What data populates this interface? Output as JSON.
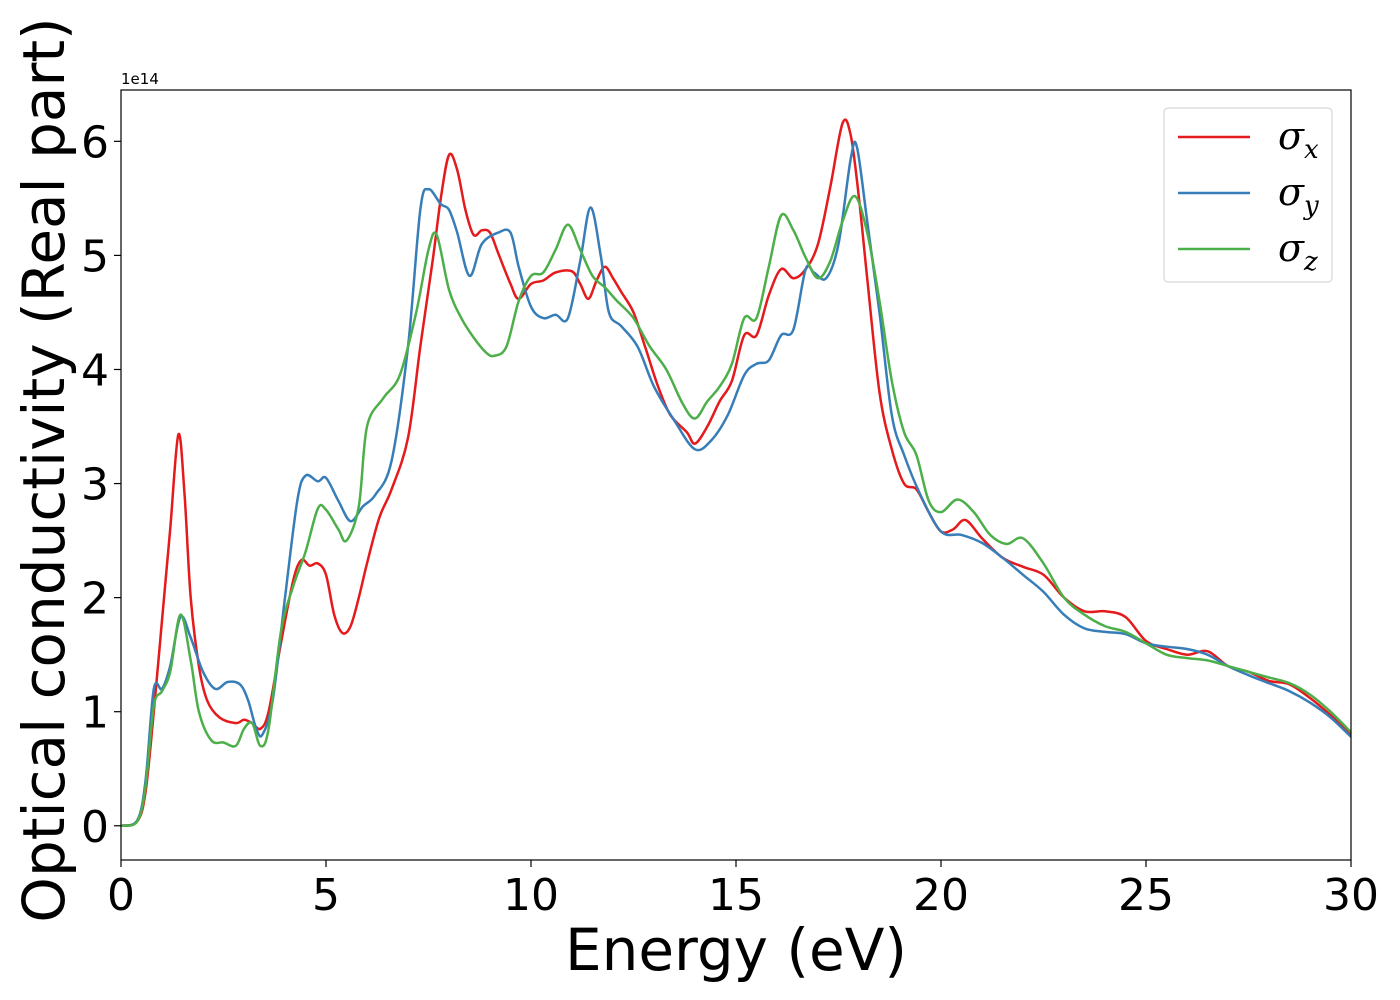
{
  "chart_data": {
    "type": "line",
    "title": "",
    "xlabel": "Energy (eV)",
    "ylabel": "Optical conductivity (Real part)",
    "y_multiplier_label": "1e14",
    "xlim": [
      0,
      30
    ],
    "ylim": [
      -0.3,
      6.45
    ],
    "x_ticks": [
      0,
      5,
      10,
      15,
      20,
      25,
      30
    ],
    "y_ticks": [
      0,
      1,
      2,
      3,
      4,
      5,
      6
    ],
    "grid": false,
    "legend_position": "top-right",
    "series": [
      {
        "name": "σx",
        "name_base": "σ",
        "name_sub": "x",
        "color": "#e41a1c",
        "points": [
          [
            0,
            0
          ],
          [
            0.4,
            0.04
          ],
          [
            0.6,
            0.3
          ],
          [
            0.8,
            1.0
          ],
          [
            1.0,
            1.8
          ],
          [
            1.2,
            2.6
          ],
          [
            1.4,
            3.43
          ],
          [
            1.55,
            2.9
          ],
          [
            1.7,
            2.0
          ],
          [
            1.9,
            1.4
          ],
          [
            2.1,
            1.1
          ],
          [
            2.4,
            0.95
          ],
          [
            2.8,
            0.9
          ],
          [
            3.0,
            0.93
          ],
          [
            3.2,
            0.9
          ],
          [
            3.4,
            0.85
          ],
          [
            3.6,
            1.0
          ],
          [
            3.9,
            1.6
          ],
          [
            4.2,
            2.15
          ],
          [
            4.4,
            2.33
          ],
          [
            4.6,
            2.28
          ],
          [
            4.8,
            2.3
          ],
          [
            5.0,
            2.2
          ],
          [
            5.2,
            1.85
          ],
          [
            5.4,
            1.69
          ],
          [
            5.6,
            1.75
          ],
          [
            5.8,
            2.0
          ],
          [
            6.0,
            2.3
          ],
          [
            6.3,
            2.7
          ],
          [
            6.6,
            2.95
          ],
          [
            7.0,
            3.4
          ],
          [
            7.3,
            4.2
          ],
          [
            7.6,
            4.95
          ],
          [
            7.8,
            5.5
          ],
          [
            8.0,
            5.88
          ],
          [
            8.2,
            5.75
          ],
          [
            8.4,
            5.4
          ],
          [
            8.6,
            5.18
          ],
          [
            8.8,
            5.22
          ],
          [
            9.0,
            5.2
          ],
          [
            9.2,
            5.02
          ],
          [
            9.5,
            4.75
          ],
          [
            9.7,
            4.62
          ],
          [
            10.0,
            4.75
          ],
          [
            10.3,
            4.78
          ],
          [
            10.6,
            4.85
          ],
          [
            11.0,
            4.86
          ],
          [
            11.2,
            4.75
          ],
          [
            11.4,
            4.62
          ],
          [
            11.6,
            4.78
          ],
          [
            11.8,
            4.9
          ],
          [
            12.0,
            4.8
          ],
          [
            12.2,
            4.68
          ],
          [
            12.5,
            4.5
          ],
          [
            12.8,
            4.18
          ],
          [
            13.1,
            3.85
          ],
          [
            13.4,
            3.6
          ],
          [
            13.8,
            3.45
          ],
          [
            14.0,
            3.35
          ],
          [
            14.3,
            3.5
          ],
          [
            14.6,
            3.72
          ],
          [
            14.9,
            3.9
          ],
          [
            15.2,
            4.3
          ],
          [
            15.5,
            4.3
          ],
          [
            15.8,
            4.65
          ],
          [
            16.1,
            4.88
          ],
          [
            16.4,
            4.8
          ],
          [
            16.7,
            4.88
          ],
          [
            17.0,
            5.1
          ],
          [
            17.3,
            5.6
          ],
          [
            17.6,
            6.16
          ],
          [
            17.8,
            6.05
          ],
          [
            18.0,
            5.5
          ],
          [
            18.2,
            4.8
          ],
          [
            18.5,
            3.8
          ],
          [
            18.8,
            3.3
          ],
          [
            19.1,
            3.0
          ],
          [
            19.4,
            2.95
          ],
          [
            19.7,
            2.75
          ],
          [
            20.0,
            2.58
          ],
          [
            20.3,
            2.6
          ],
          [
            20.6,
            2.68
          ],
          [
            21.0,
            2.52
          ],
          [
            21.5,
            2.35
          ],
          [
            22.0,
            2.27
          ],
          [
            22.5,
            2.2
          ],
          [
            23.0,
            2.0
          ],
          [
            23.5,
            1.88
          ],
          [
            24.0,
            1.88
          ],
          [
            24.5,
            1.83
          ],
          [
            25.0,
            1.62
          ],
          [
            25.5,
            1.55
          ],
          [
            26.0,
            1.5
          ],
          [
            26.5,
            1.53
          ],
          [
            27.0,
            1.4
          ],
          [
            27.5,
            1.35
          ],
          [
            28.0,
            1.27
          ],
          [
            28.5,
            1.24
          ],
          [
            29.0,
            1.12
          ],
          [
            29.5,
            0.97
          ],
          [
            30.0,
            0.8
          ]
        ]
      },
      {
        "name": "σy",
        "name_base": "σ",
        "name_sub": "y",
        "color": "#377eb8",
        "points": [
          [
            0,
            0
          ],
          [
            0.4,
            0.05
          ],
          [
            0.6,
            0.4
          ],
          [
            0.8,
            1.2
          ],
          [
            1.0,
            1.2
          ],
          [
            1.2,
            1.4
          ],
          [
            1.45,
            1.83
          ],
          [
            1.7,
            1.65
          ],
          [
            2.0,
            1.35
          ],
          [
            2.3,
            1.2
          ],
          [
            2.6,
            1.26
          ],
          [
            2.9,
            1.24
          ],
          [
            3.1,
            1.1
          ],
          [
            3.3,
            0.85
          ],
          [
            3.45,
            0.8
          ],
          [
            3.7,
            1.1
          ],
          [
            4.0,
            2.0
          ],
          [
            4.3,
            2.85
          ],
          [
            4.5,
            3.07
          ],
          [
            4.8,
            3.02
          ],
          [
            5.0,
            3.05
          ],
          [
            5.3,
            2.85
          ],
          [
            5.6,
            2.67
          ],
          [
            5.9,
            2.8
          ],
          [
            6.2,
            2.9
          ],
          [
            6.6,
            3.2
          ],
          [
            7.0,
            4.2
          ],
          [
            7.3,
            5.4
          ],
          [
            7.5,
            5.58
          ],
          [
            7.8,
            5.45
          ],
          [
            8.0,
            5.4
          ],
          [
            8.2,
            5.2
          ],
          [
            8.5,
            4.82
          ],
          [
            8.8,
            5.1
          ],
          [
            9.2,
            5.2
          ],
          [
            9.5,
            5.2
          ],
          [
            9.7,
            4.9
          ],
          [
            10.0,
            4.55
          ],
          [
            10.3,
            4.45
          ],
          [
            10.6,
            4.48
          ],
          [
            10.9,
            4.45
          ],
          [
            11.2,
            4.95
          ],
          [
            11.45,
            5.42
          ],
          [
            11.7,
            5.0
          ],
          [
            11.9,
            4.5
          ],
          [
            12.2,
            4.38
          ],
          [
            12.6,
            4.2
          ],
          [
            13.0,
            3.85
          ],
          [
            13.5,
            3.55
          ],
          [
            14.0,
            3.3
          ],
          [
            14.4,
            3.38
          ],
          [
            14.8,
            3.6
          ],
          [
            15.2,
            3.95
          ],
          [
            15.5,
            4.05
          ],
          [
            15.8,
            4.08
          ],
          [
            16.1,
            4.3
          ],
          [
            16.4,
            4.35
          ],
          [
            16.7,
            4.88
          ],
          [
            16.9,
            4.85
          ],
          [
            17.2,
            4.8
          ],
          [
            17.5,
            5.1
          ],
          [
            17.8,
            5.85
          ],
          [
            17.95,
            5.95
          ],
          [
            18.2,
            5.3
          ],
          [
            18.5,
            4.5
          ],
          [
            18.8,
            3.6
          ],
          [
            19.1,
            3.25
          ],
          [
            19.5,
            2.9
          ],
          [
            20.0,
            2.58
          ],
          [
            20.5,
            2.55
          ],
          [
            21.0,
            2.48
          ],
          [
            21.5,
            2.35
          ],
          [
            22.0,
            2.2
          ],
          [
            22.5,
            2.05
          ],
          [
            23.0,
            1.85
          ],
          [
            23.5,
            1.73
          ],
          [
            24.0,
            1.7
          ],
          [
            24.5,
            1.68
          ],
          [
            25.0,
            1.6
          ],
          [
            25.5,
            1.57
          ],
          [
            26.0,
            1.55
          ],
          [
            26.5,
            1.5
          ],
          [
            27.0,
            1.4
          ],
          [
            27.5,
            1.32
          ],
          [
            28.0,
            1.25
          ],
          [
            28.5,
            1.18
          ],
          [
            29.0,
            1.08
          ],
          [
            29.5,
            0.95
          ],
          [
            30.0,
            0.78
          ]
        ]
      },
      {
        "name": "σz",
        "name_base": "σ",
        "name_sub": "z",
        "color": "#4daf4a",
        "points": [
          [
            0,
            0
          ],
          [
            0.4,
            0.04
          ],
          [
            0.6,
            0.35
          ],
          [
            0.8,
            1.05
          ],
          [
            1.0,
            1.18
          ],
          [
            1.2,
            1.35
          ],
          [
            1.45,
            1.85
          ],
          [
            1.7,
            1.45
          ],
          [
            1.9,
            1.0
          ],
          [
            2.2,
            0.75
          ],
          [
            2.5,
            0.73
          ],
          [
            2.8,
            0.7
          ],
          [
            3.0,
            0.85
          ],
          [
            3.2,
            0.9
          ],
          [
            3.4,
            0.7
          ],
          [
            3.6,
            0.85
          ],
          [
            3.9,
            1.7
          ],
          [
            4.2,
            2.1
          ],
          [
            4.5,
            2.4
          ],
          [
            4.8,
            2.78
          ],
          [
            5.0,
            2.77
          ],
          [
            5.3,
            2.6
          ],
          [
            5.5,
            2.5
          ],
          [
            5.8,
            2.8
          ],
          [
            6.0,
            3.5
          ],
          [
            6.4,
            3.75
          ],
          [
            6.8,
            3.95
          ],
          [
            7.2,
            4.5
          ],
          [
            7.5,
            5.05
          ],
          [
            7.7,
            5.18
          ],
          [
            8.0,
            4.7
          ],
          [
            8.3,
            4.45
          ],
          [
            8.6,
            4.28
          ],
          [
            8.9,
            4.15
          ],
          [
            9.1,
            4.12
          ],
          [
            9.4,
            4.2
          ],
          [
            9.7,
            4.6
          ],
          [
            10.0,
            4.82
          ],
          [
            10.3,
            4.85
          ],
          [
            10.6,
            5.05
          ],
          [
            10.9,
            5.27
          ],
          [
            11.2,
            5.05
          ],
          [
            11.5,
            4.82
          ],
          [
            11.8,
            4.72
          ],
          [
            12.1,
            4.6
          ],
          [
            12.5,
            4.45
          ],
          [
            12.9,
            4.2
          ],
          [
            13.3,
            4.0
          ],
          [
            13.7,
            3.7
          ],
          [
            14.0,
            3.57
          ],
          [
            14.3,
            3.72
          ],
          [
            14.6,
            3.85
          ],
          [
            14.9,
            4.05
          ],
          [
            15.2,
            4.45
          ],
          [
            15.5,
            4.45
          ],
          [
            15.8,
            4.9
          ],
          [
            16.1,
            5.35
          ],
          [
            16.4,
            5.22
          ],
          [
            16.7,
            4.98
          ],
          [
            17.0,
            4.8
          ],
          [
            17.3,
            4.95
          ],
          [
            17.6,
            5.3
          ],
          [
            17.9,
            5.52
          ],
          [
            18.2,
            5.2
          ],
          [
            18.5,
            4.6
          ],
          [
            18.8,
            3.9
          ],
          [
            19.1,
            3.45
          ],
          [
            19.4,
            3.25
          ],
          [
            19.7,
            2.85
          ],
          [
            20.0,
            2.75
          ],
          [
            20.4,
            2.86
          ],
          [
            20.8,
            2.75
          ],
          [
            21.2,
            2.55
          ],
          [
            21.6,
            2.47
          ],
          [
            22.0,
            2.52
          ],
          [
            22.5,
            2.3
          ],
          [
            23.0,
            2.0
          ],
          [
            23.5,
            1.85
          ],
          [
            24.0,
            1.75
          ],
          [
            24.5,
            1.7
          ],
          [
            25.0,
            1.6
          ],
          [
            25.5,
            1.5
          ],
          [
            26.0,
            1.47
          ],
          [
            26.5,
            1.45
          ],
          [
            27.0,
            1.4
          ],
          [
            27.5,
            1.35
          ],
          [
            28.0,
            1.3
          ],
          [
            28.5,
            1.25
          ],
          [
            29.0,
            1.15
          ],
          [
            29.5,
            1.0
          ],
          [
            30.0,
            0.82
          ]
        ]
      }
    ]
  }
}
